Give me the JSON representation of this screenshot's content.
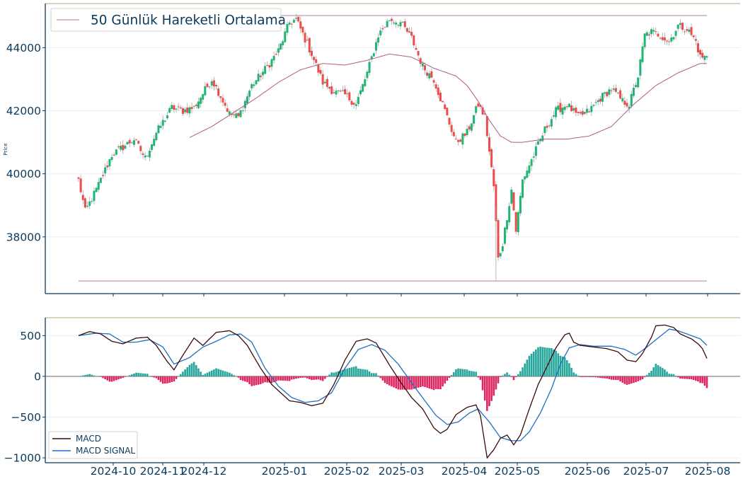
{
  "colors": {
    "up": "#26a69a",
    "up_candle": "#1fb574",
    "down": "#ef4b4b",
    "hist_pos": "#26a69a",
    "hist_neg": "#e0245e",
    "ma": "#b25a80",
    "hline": "#c9a3b8",
    "macd": "#3b0a0a",
    "signal": "#1f6fbf",
    "axis": "#0b3a5c",
    "grid": "#e9eef3",
    "top_border": "#c9c9a8"
  },
  "chart_data": [
    {
      "type": "candlestick",
      "title": "",
      "ylabel": "Price",
      "ylim": [
        36200,
        45400
      ],
      "yticks": [
        "38000",
        "40000",
        "42000",
        "44000"
      ],
      "xlabels": [
        "2024-10",
        "2024-11",
        "2024-12",
        "2025-01",
        "2025-02",
        "2025-03",
        "2025-04",
        "2025-05",
        "2025-06",
        "2025-07",
        "2025-08"
      ],
      "legend": {
        "label": "50 Günlük Hareketli Ortalama",
        "position": "upper-left"
      },
      "hlines": [
        45020,
        36600
      ],
      "series_anchors": {
        "close": [
          [
            0,
            39800
          ],
          [
            3,
            38800
          ],
          [
            8,
            39500
          ],
          [
            15,
            40600
          ],
          [
            25,
            41100
          ],
          [
            30,
            40500
          ],
          [
            35,
            41300
          ],
          [
            42,
            42100
          ],
          [
            47,
            42000
          ],
          [
            52,
            42100
          ],
          [
            60,
            43000
          ],
          [
            63,
            42600
          ],
          [
            68,
            41900
          ],
          [
            72,
            41800
          ],
          [
            78,
            42800
          ],
          [
            85,
            43400
          ],
          [
            90,
            43900
          ],
          [
            95,
            44800
          ],
          [
            98,
            44900
          ],
          [
            105,
            43800
          ],
          [
            110,
            42900
          ],
          [
            115,
            42600
          ],
          [
            120,
            42500
          ],
          [
            125,
            42200
          ],
          [
            130,
            43200
          ],
          [
            135,
            44400
          ],
          [
            140,
            44900
          ],
          [
            145,
            44800
          ],
          [
            150,
            44300
          ],
          [
            155,
            43400
          ],
          [
            160,
            43000
          ],
          [
            165,
            42000
          ],
          [
            170,
            41000
          ],
          [
            175,
            41300
          ],
          [
            180,
            42200
          ],
          [
            183,
            41800
          ],
          [
            187,
            39600
          ],
          [
            189,
            37300
          ],
          [
            191,
            37800
          ],
          [
            195,
            39500
          ],
          [
            197,
            38200
          ],
          [
            200,
            39800
          ],
          [
            205,
            40600
          ],
          [
            210,
            41400
          ],
          [
            215,
            42000
          ],
          [
            220,
            42200
          ],
          [
            225,
            41800
          ],
          [
            230,
            42000
          ],
          [
            235,
            42400
          ],
          [
            240,
            42700
          ],
          [
            245,
            42300
          ],
          [
            248,
            42200
          ],
          [
            252,
            43100
          ],
          [
            255,
            44400
          ],
          [
            258,
            44500
          ],
          [
            262,
            44400
          ],
          [
            266,
            44200
          ],
          [
            270,
            44700
          ],
          [
            274,
            44600
          ],
          [
            278,
            44200
          ],
          [
            280,
            43700
          ]
        ],
        "ma50_start": 50,
        "ma50": [
          [
            50,
            41150
          ],
          [
            60,
            41500
          ],
          [
            70,
            41950
          ],
          [
            80,
            42400
          ],
          [
            90,
            42900
          ],
          [
            100,
            43300
          ],
          [
            110,
            43500
          ],
          [
            120,
            43450
          ],
          [
            130,
            43600
          ],
          [
            140,
            43800
          ],
          [
            150,
            43700
          ],
          [
            160,
            43350
          ],
          [
            170,
            43100
          ],
          [
            175,
            42800
          ],
          [
            180,
            42300
          ],
          [
            185,
            41700
          ],
          [
            190,
            41200
          ],
          [
            195,
            41000
          ],
          [
            200,
            41000
          ],
          [
            210,
            41100
          ],
          [
            220,
            41100
          ],
          [
            230,
            41200
          ],
          [
            240,
            41500
          ],
          [
            250,
            42200
          ],
          [
            260,
            42800
          ],
          [
            270,
            43200
          ],
          [
            280,
            43500
          ]
        ]
      }
    },
    {
      "type": "macd",
      "ylim": [
        -1060,
        720
      ],
      "yticks": [
        "500",
        "0",
        "−500",
        "−1000"
      ],
      "series": [
        {
          "name": "MACD",
          "anchors": [
            [
              0,
              500
            ],
            [
              5,
              550
            ],
            [
              10,
              520
            ],
            [
              15,
              430
            ],
            [
              20,
              400
            ],
            [
              26,
              470
            ],
            [
              31,
              480
            ],
            [
              35,
              380
            ],
            [
              40,
              180
            ],
            [
              43,
              80
            ],
            [
              47,
              260
            ],
            [
              52,
              470
            ],
            [
              56,
              380
            ],
            [
              62,
              540
            ],
            [
              68,
              560
            ],
            [
              72,
              500
            ],
            [
              76,
              380
            ],
            [
              82,
              100
            ],
            [
              87,
              -100
            ],
            [
              95,
              -300
            ],
            [
              100,
              -320
            ],
            [
              105,
              -360
            ],
            [
              110,
              -330
            ],
            [
              115,
              -100
            ],
            [
              120,
              200
            ],
            [
              125,
              430
            ],
            [
              130,
              460
            ],
            [
              134,
              410
            ],
            [
              140,
              140
            ],
            [
              145,
              -70
            ],
            [
              150,
              -260
            ],
            [
              155,
              -400
            ],
            [
              160,
              -630
            ],
            [
              163,
              -700
            ],
            [
              166,
              -650
            ],
            [
              170,
              -470
            ],
            [
              175,
              -380
            ],
            [
              179,
              -350
            ],
            [
              181,
              -480
            ],
            [
              184,
              -1000
            ],
            [
              187,
              -900
            ],
            [
              190,
              -760
            ],
            [
              193,
              -720
            ],
            [
              196,
              -840
            ],
            [
              199,
              -720
            ],
            [
              203,
              -400
            ],
            [
              207,
              -100
            ],
            [
              211,
              120
            ],
            [
              215,
              350
            ],
            [
              219,
              510
            ],
            [
              221,
              530
            ],
            [
              223,
              420
            ],
            [
              226,
              380
            ],
            [
              232,
              360
            ],
            [
              238,
              340
            ],
            [
              243,
              300
            ],
            [
              247,
              200
            ],
            [
              251,
              180
            ],
            [
              254,
              280
            ],
            [
              258,
              480
            ],
            [
              260,
              620
            ],
            [
              264,
              630
            ],
            [
              268,
              600
            ],
            [
              271,
              520
            ],
            [
              276,
              460
            ],
            [
              279,
              400
            ],
            [
              281,
              340
            ],
            [
              283,
              220
            ]
          ]
        },
        {
          "name": "MACD SIGNAL",
          "anchors": [
            [
              0,
              500
            ],
            [
              8,
              530
            ],
            [
              14,
              520
            ],
            [
              20,
              420
            ],
            [
              26,
              420
            ],
            [
              32,
              450
            ],
            [
              38,
              360
            ],
            [
              43,
              150
            ],
            [
              50,
              230
            ],
            [
              56,
              360
            ],
            [
              62,
              430
            ],
            [
              68,
              510
            ],
            [
              73,
              520
            ],
            [
              78,
              420
            ],
            [
              84,
              100
            ],
            [
              90,
              -120
            ],
            [
              96,
              -260
            ],
            [
              102,
              -320
            ],
            [
              108,
              -300
            ],
            [
              114,
              -200
            ],
            [
              120,
              100
            ],
            [
              126,
              330
            ],
            [
              132,
              390
            ],
            [
              138,
              320
            ],
            [
              144,
              150
            ],
            [
              150,
              -80
            ],
            [
              156,
              -300
            ],
            [
              161,
              -480
            ],
            [
              166,
              -590
            ],
            [
              171,
              -560
            ],
            [
              176,
              -450
            ],
            [
              180,
              -400
            ],
            [
              185,
              -560
            ],
            [
              190,
              -750
            ],
            [
              195,
              -790
            ],
            [
              199,
              -790
            ],
            [
              203,
              -680
            ],
            [
              208,
              -450
            ],
            [
              213,
              -150
            ],
            [
              217,
              150
            ],
            [
              221,
              350
            ],
            [
              226,
              390
            ],
            [
              232,
              370
            ],
            [
              240,
              370
            ],
            [
              246,
              330
            ],
            [
              251,
              260
            ],
            [
              256,
              360
            ],
            [
              261,
              470
            ],
            [
              266,
              580
            ],
            [
              270,
              560
            ],
            [
              275,
              510
            ],
            [
              280,
              460
            ],
            [
              283,
              380
            ]
          ]
        }
      ],
      "histogram": true,
      "legend": {
        "entries": [
          "MACD",
          "MACD SIGNAL"
        ],
        "position": "lower-left"
      },
      "xlabels": [
        "2024-10",
        "2024-11",
        "2024-12",
        "2025-01",
        "2025-02",
        "2025-03",
        "2025-04",
        "2025-05",
        "2025-06",
        "2025-07",
        "2025-08"
      ]
    }
  ]
}
